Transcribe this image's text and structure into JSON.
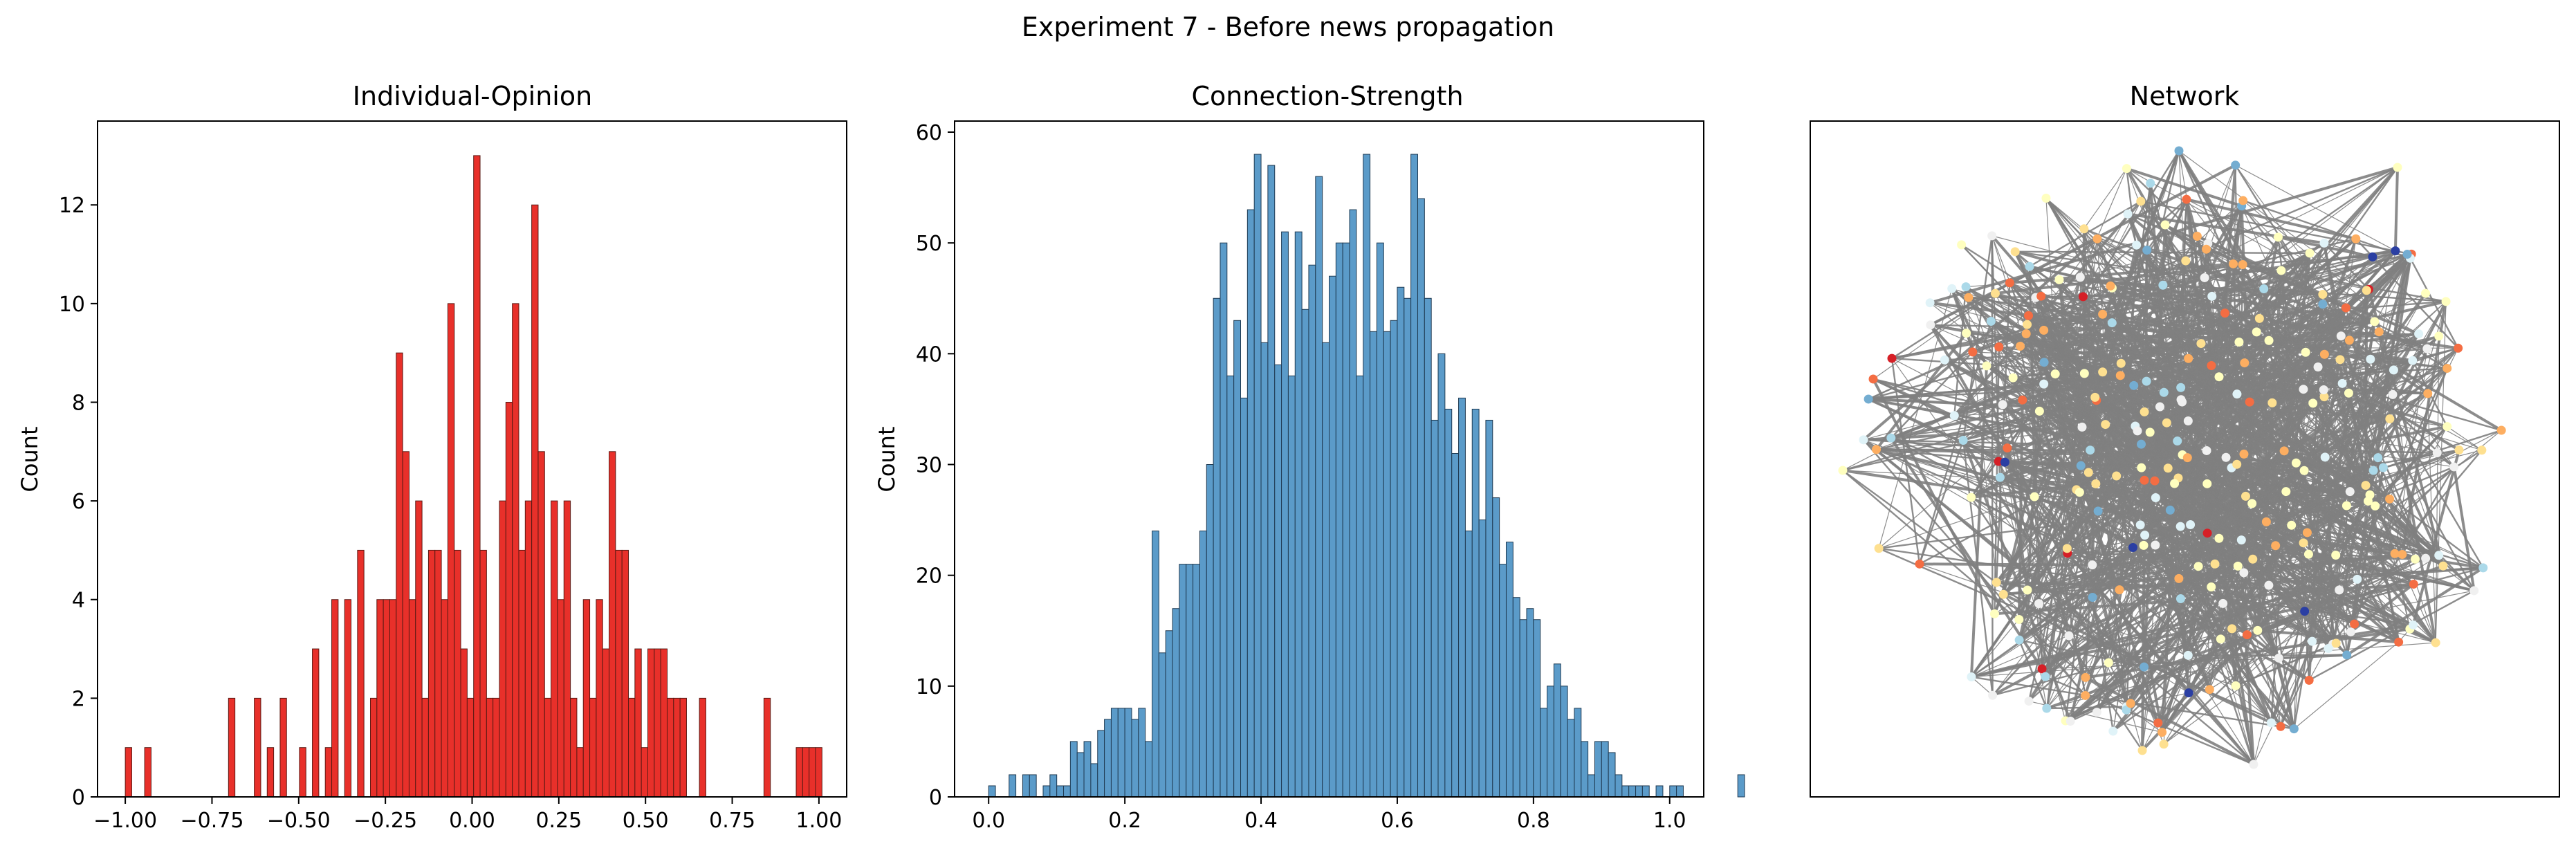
{
  "figure": {
    "title": "Experiment 7 - Before news propagation"
  },
  "chart_data": [
    {
      "type": "bar",
      "subtype": "histogram",
      "title": "Individual-Opinion",
      "xlabel": "",
      "ylabel": "Count",
      "xlim": [
        -1.08,
        1.08
      ],
      "ylim": [
        0,
        13.7
      ],
      "xticks": [
        -1.0,
        -0.75,
        -0.5,
        -0.25,
        0.0,
        0.25,
        0.5,
        0.75,
        1.0
      ],
      "xtick_labels": [
        "−1.00",
        "−0.75",
        "−0.50",
        "−0.25",
        "0.00",
        "0.25",
        "0.50",
        "0.75",
        "1.00"
      ],
      "yticks": [
        0,
        2,
        4,
        6,
        8,
        10,
        12
      ],
      "ytick_labels": [
        "0",
        "2",
        "4",
        "6",
        "8",
        "10",
        "12"
      ],
      "grid": false,
      "bar_color": "#e8302a",
      "edge_color": "#5a1a14",
      "bin_start": -1.0,
      "bin_width": 0.0186,
      "counts": [
        1,
        0,
        0,
        1,
        0,
        0,
        0,
        0,
        0,
        0,
        0,
        0,
        0,
        0,
        0,
        0,
        2,
        0,
        0,
        0,
        2,
        0,
        1,
        0,
        2,
        0,
        0,
        1,
        0,
        3,
        0,
        1,
        4,
        0,
        4,
        0,
        5,
        0,
        2,
        4,
        4,
        4,
        9,
        7,
        4,
        6,
        2,
        5,
        5,
        4,
        10,
        5,
        3,
        2,
        13,
        5,
        2,
        2,
        6,
        8,
        10,
        5,
        6,
        12,
        7,
        2,
        6,
        4,
        6,
        2,
        1,
        4,
        2,
        4,
        3,
        7,
        5,
        5,
        2,
        3,
        1,
        3,
        3,
        3,
        2,
        2,
        2,
        0,
        0,
        2,
        0,
        0,
        0,
        0,
        0,
        0,
        0,
        0,
        0,
        2,
        0,
        0,
        0,
        0,
        1,
        1,
        1,
        1,
        0,
        0,
        0,
        0,
        0,
        0,
        0,
        0,
        0,
        0,
        0,
        0,
        0,
        0,
        0,
        0,
        0,
        0,
        0,
        0,
        0,
        0,
        0
      ]
    },
    {
      "type": "bar",
      "subtype": "histogram",
      "title": "Connection-Strength",
      "xlabel": "",
      "ylabel": "Count",
      "xlim": [
        -0.05,
        1.05
      ],
      "ylim": [
        0,
        61
      ],
      "xticks": [
        0.0,
        0.2,
        0.4,
        0.6,
        0.8,
        1.0
      ],
      "xtick_labels": [
        "0.0",
        "0.2",
        "0.4",
        "0.6",
        "0.8",
        "1.0"
      ],
      "yticks": [
        0,
        10,
        20,
        30,
        40,
        50,
        60
      ],
      "ytick_labels": [
        "0",
        "10",
        "20",
        "30",
        "40",
        "50",
        "60"
      ],
      "grid": false,
      "bar_color": "#5b9bc9",
      "edge_color": "#1f3a52",
      "bin_start": 0.0,
      "bin_width": 0.01,
      "counts": [
        1,
        0,
        0,
        2,
        0,
        2,
        2,
        0,
        1,
        2,
        1,
        1,
        5,
        4,
        5,
        3,
        6,
        7,
        8,
        8,
        8,
        7,
        8,
        5,
        24,
        13,
        15,
        17,
        21,
        21,
        21,
        24,
        30,
        45,
        50,
        38,
        43,
        36,
        53,
        58,
        41,
        57,
        39,
        51,
        38,
        51,
        44,
        48,
        56,
        41,
        47,
        50,
        50,
        53,
        38,
        58,
        42,
        50,
        42,
        43,
        46,
        45,
        58,
        54,
        45,
        34,
        40,
        35,
        31,
        36,
        24,
        35,
        25,
        34,
        27,
        21,
        23,
        18,
        16,
        17,
        16,
        8,
        10,
        12,
        10,
        7,
        8,
        5,
        2,
        5,
        5,
        4,
        2,
        1,
        1,
        1,
        1,
        0,
        1,
        0,
        1,
        1,
        0,
        0,
        0,
        0,
        0,
        0,
        0,
        0,
        2
      ]
    },
    {
      "type": "network",
      "title": "Network",
      "edge_color": "#808080",
      "node_count": 300,
      "node_palette": [
        "#d62027",
        "#f46d43",
        "#fdae61",
        "#fee090",
        "#ffffbf",
        "#e0f3f8",
        "#abd9e9",
        "#74add1",
        "#2b3fa3",
        "#f0f0f0"
      ],
      "axes_ticks": false
    }
  ]
}
